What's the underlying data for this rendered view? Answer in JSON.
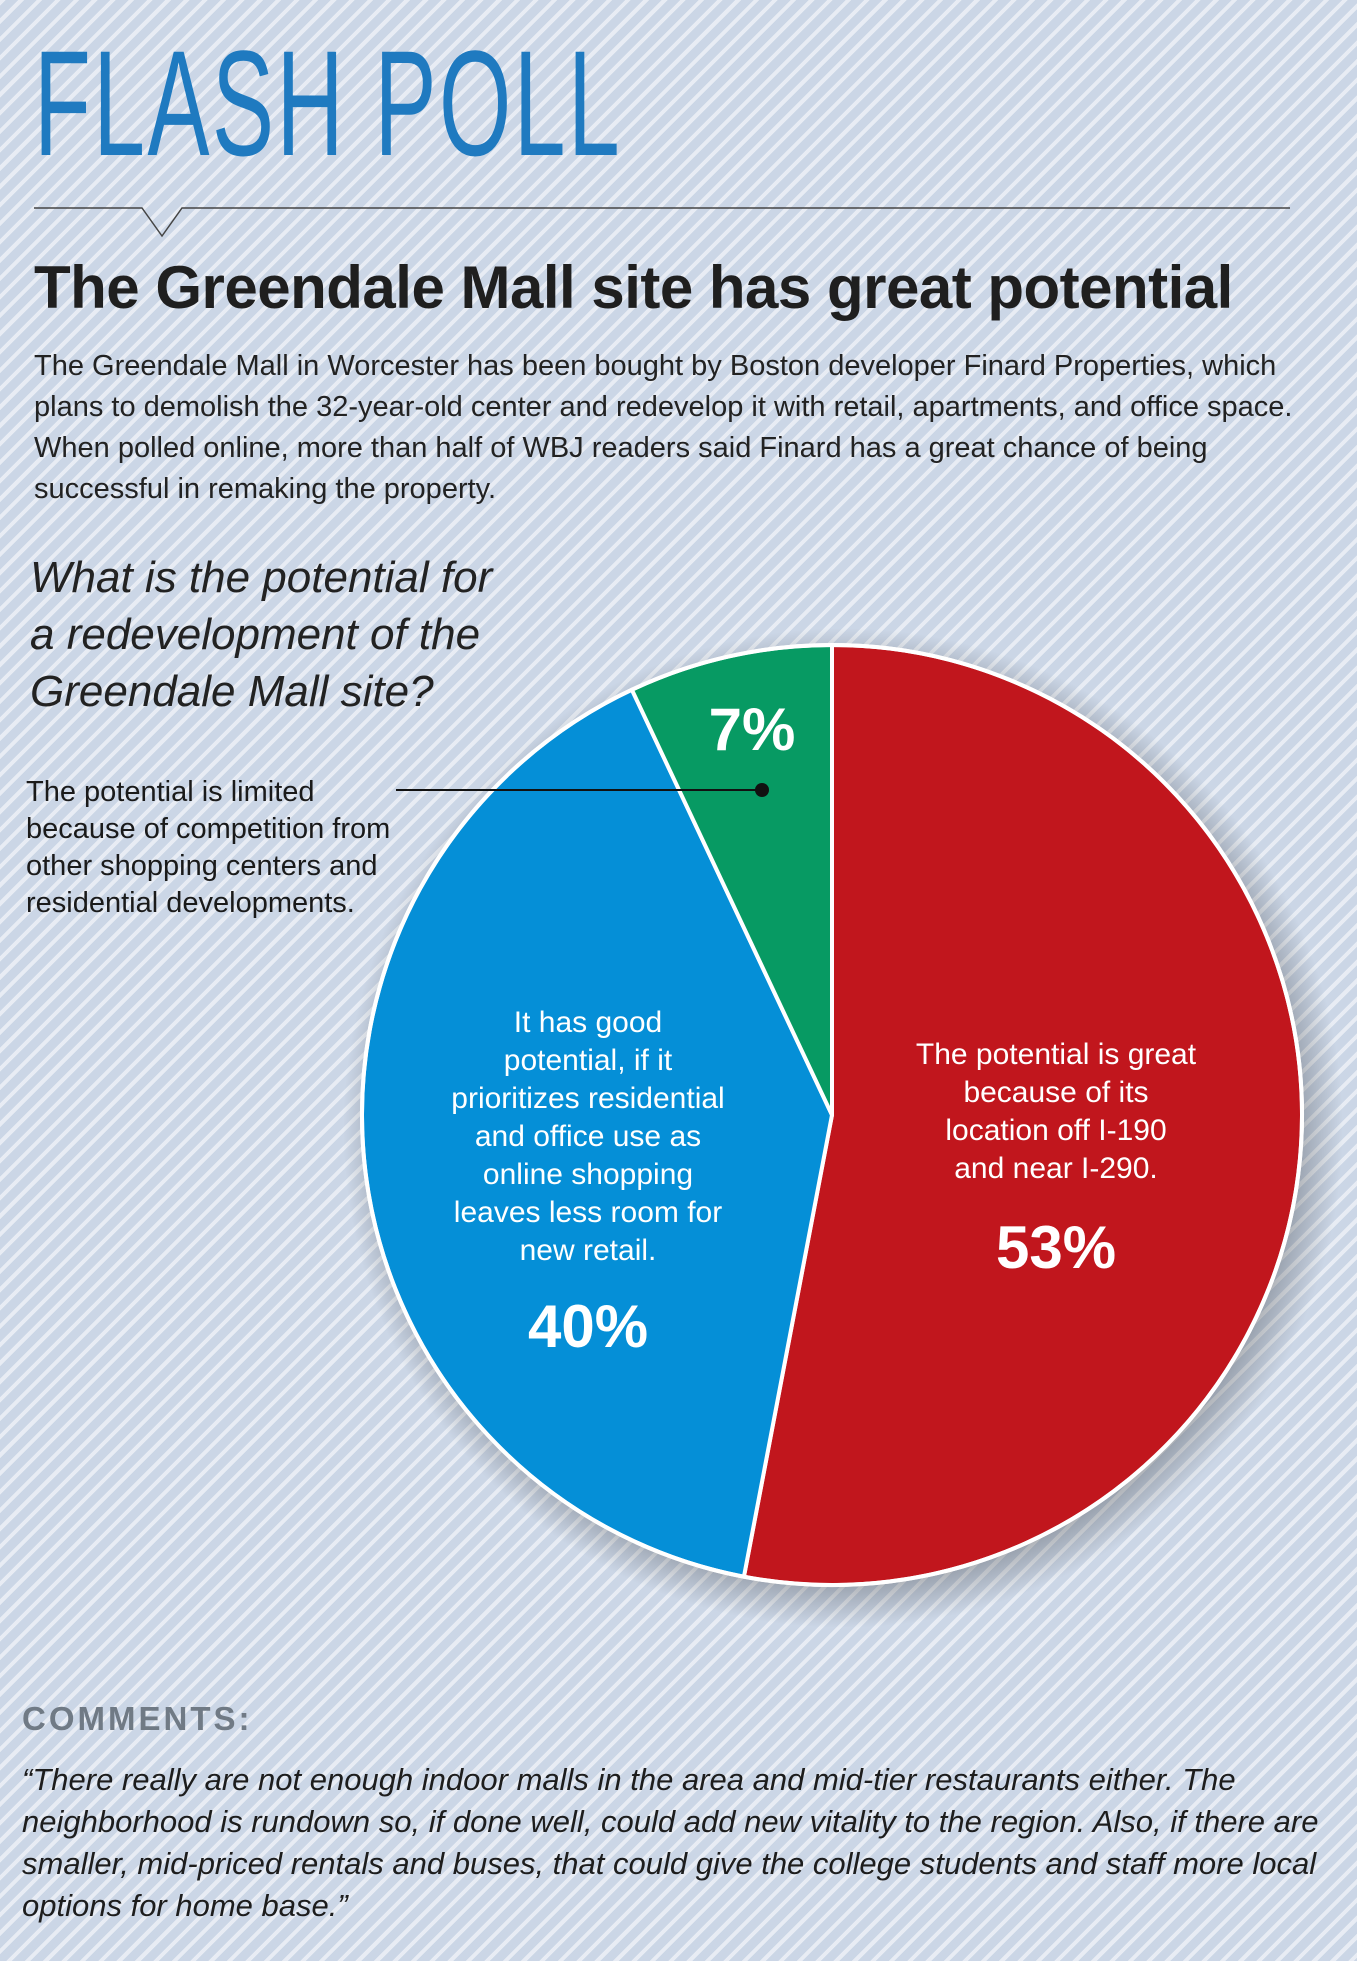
{
  "header": {
    "kicker": "FLASH POLL",
    "headline": "The Greendale Mall site has great potential",
    "intro": "The Greendale Mall in Worcester has been bought by Boston developer Finard Properties, which plans to demolish the 32-year-old center and redevelop it with retail, apartments, and office space. When polled online, more than half of WBJ readers said Finard has a great chance of being successful in remaking the property."
  },
  "colors": {
    "accent": "#1f7ac0",
    "great": "#c1161d",
    "good": "#058fd7",
    "limited": "#079a63"
  },
  "chart_data": {
    "type": "pie",
    "title": "What is the potential for a redevelopment of the Greendale Mall site?",
    "slices": [
      {
        "label": "The potential is great because of its location off I-190 and near I-290.",
        "value": 53,
        "display": "53%",
        "label_lines": [
          "The potential is great",
          "because of its",
          "location off I-190",
          "and near I-290."
        ]
      },
      {
        "label": "It has good potential, if it prioritizes residential and office use as online shopping leaves less room for new retail.",
        "value": 40,
        "display": "40%",
        "label_lines": [
          "It has good",
          "potential, if it",
          "prioritizes residential",
          "and office use as",
          "online shopping",
          "leaves less room for",
          "new retail."
        ]
      },
      {
        "label": "The potential is limited because of competition from other shopping centers and residential developments.",
        "value": 7,
        "display": "7%"
      }
    ]
  },
  "comments": {
    "heading": "COMMENTS:",
    "quote": "“There really are not enough indoor malls in the area and mid-tier restaurants either. The neighborhood is rundown so, if done well, could add new vitality to the region. Also, if there are smaller, mid-priced rentals and buses, that could give the college students and staff more local options for home base.”"
  }
}
